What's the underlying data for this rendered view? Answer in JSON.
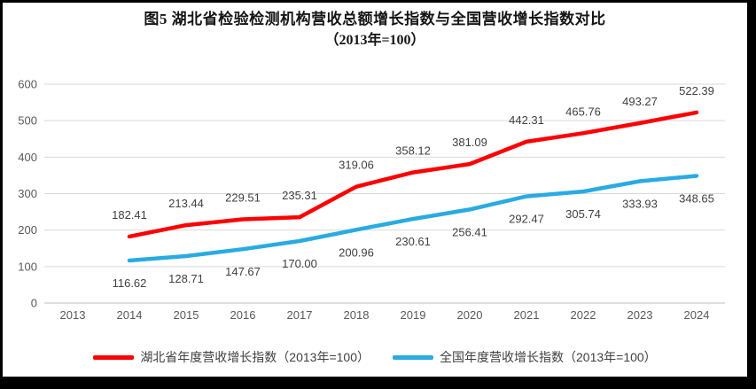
{
  "title": {
    "line1": "图5 湖北省检验检测机构营收总额增长指数与全国营收增长指数对比",
    "line2": "（2013年=100）"
  },
  "chart_data": {
    "type": "line",
    "title": "图5 湖北省检验检测机构营收总额增长指数与全国营收增长指数对比",
    "subtitle": "（2013年=100）",
    "x_categories": [
      "2013",
      "2014",
      "2015",
      "2016",
      "2017",
      "2018",
      "2019",
      "2020",
      "2021",
      "2022",
      "2023",
      "2024"
    ],
    "ylim": [
      0,
      600
    ],
    "y_ticks": [
      0,
      100,
      200,
      300,
      400,
      500,
      600
    ],
    "grid": "horizontal",
    "legend_position": "bottom",
    "colors": {
      "grid": "#D9D9D9",
      "axis": "#BFBFBF",
      "tick_text": "#595959",
      "data_label_text": "#404040"
    },
    "series": [
      {
        "name": "湖北省年度营收增长指数（2013年=100）",
        "color": "#FF0000",
        "x": [
          "2014",
          "2015",
          "2016",
          "2017",
          "2018",
          "2019",
          "2020",
          "2021",
          "2022",
          "2023",
          "2024"
        ],
        "values": [
          182.41,
          213.44,
          229.51,
          235.31,
          319.06,
          358.12,
          381.09,
          442.31,
          465.76,
          493.27,
          522.39
        ],
        "labels": [
          "182.41",
          "213.44",
          "229.51",
          "235.31",
          "319.06",
          "358.12",
          "381.09",
          "442.31",
          "465.76",
          "493.27",
          "522.39"
        ],
        "label_position": "above"
      },
      {
        "name": "全国年度营收增长指数（2013年=100）",
        "color": "#29ABE2",
        "x": [
          "2014",
          "2015",
          "2016",
          "2017",
          "2018",
          "2019",
          "2020",
          "2021",
          "2022",
          "2023",
          "2024"
        ],
        "values": [
          116.62,
          128.71,
          147.67,
          170.0,
          200.96,
          230.61,
          256.41,
          292.47,
          305.74,
          333.93,
          348.65
        ],
        "labels": [
          "116.62",
          "128.71",
          "147.67",
          "170.00",
          "200.96",
          "230.61",
          "256.41",
          "292.47",
          "305.74",
          "333.93",
          "348.65"
        ],
        "label_position": "below"
      }
    ]
  }
}
